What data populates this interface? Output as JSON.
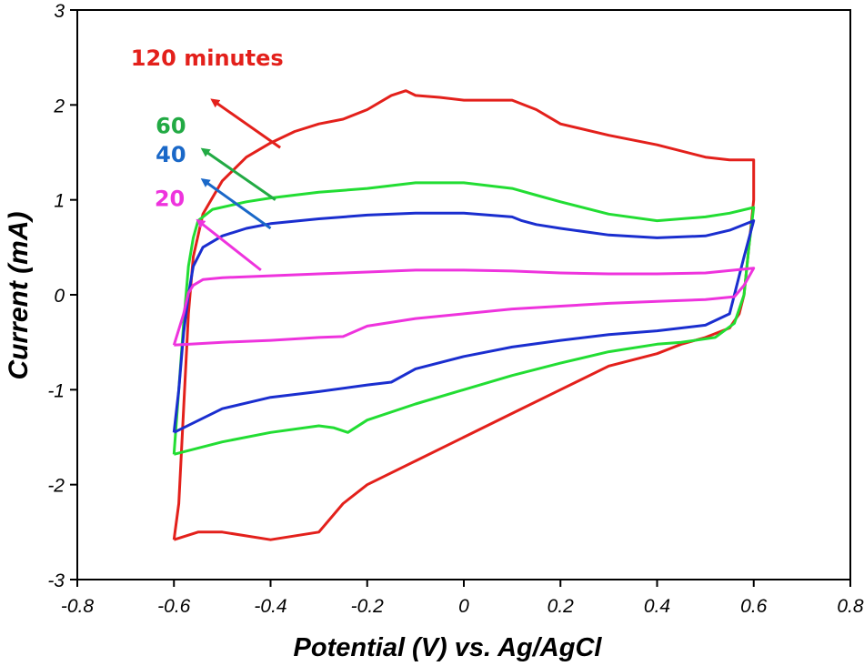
{
  "chart_data": {
    "type": "line",
    "title": "",
    "xlabel": "Potential (V) vs. Ag/AgCl",
    "ylabel": "Current (mA)",
    "xlim": [
      -0.8,
      0.8
    ],
    "ylim": [
      -3,
      3
    ],
    "xticks": [
      "-0.8",
      "-0.6",
      "-0.4",
      "-0.2",
      "0",
      "0.2",
      "0.4",
      "0.6",
      "0.8"
    ],
    "yticks": [
      "3",
      "2",
      "1",
      "0",
      "-1",
      "-2",
      "-3"
    ],
    "grid": false,
    "legend": "none (curves labeled by arrows)",
    "series": [
      {
        "name": "120 minutes",
        "color": "#e3201b",
        "points": [
          [
            -0.6,
            -2.58
          ],
          [
            -0.59,
            -2.2
          ],
          [
            -0.58,
            -1.2
          ],
          [
            -0.57,
            -0.2
          ],
          [
            -0.56,
            0.4
          ],
          [
            -0.54,
            0.85
          ],
          [
            -0.5,
            1.2
          ],
          [
            -0.45,
            1.45
          ],
          [
            -0.4,
            1.6
          ],
          [
            -0.35,
            1.72
          ],
          [
            -0.3,
            1.8
          ],
          [
            -0.25,
            1.85
          ],
          [
            -0.2,
            1.95
          ],
          [
            -0.15,
            2.1
          ],
          [
            -0.12,
            2.15
          ],
          [
            -0.1,
            2.1
          ],
          [
            -0.05,
            2.08
          ],
          [
            0,
            2.05
          ],
          [
            0.05,
            2.05
          ],
          [
            0.1,
            2.05
          ],
          [
            0.15,
            1.95
          ],
          [
            0.2,
            1.8
          ],
          [
            0.3,
            1.68
          ],
          [
            0.4,
            1.58
          ],
          [
            0.5,
            1.45
          ],
          [
            0.55,
            1.42
          ],
          [
            0.6,
            1.42
          ],
          [
            0.6,
            1.0
          ],
          [
            0.59,
            0.5
          ],
          [
            0.58,
            0.0
          ],
          [
            0.57,
            -0.2
          ],
          [
            0.55,
            -0.35
          ],
          [
            0.5,
            -0.45
          ],
          [
            0.45,
            -0.52
          ],
          [
            0.4,
            -0.62
          ],
          [
            0.3,
            -0.75
          ],
          [
            0.2,
            -1.0
          ],
          [
            0.1,
            -1.25
          ],
          [
            0.0,
            -1.5
          ],
          [
            -0.1,
            -1.75
          ],
          [
            -0.2,
            -2.0
          ],
          [
            -0.25,
            -2.2
          ],
          [
            -0.3,
            -2.5
          ],
          [
            -0.4,
            -2.58
          ],
          [
            -0.5,
            -2.5
          ],
          [
            -0.55,
            -2.5
          ],
          [
            -0.6,
            -2.58
          ]
        ]
      },
      {
        "name": "60",
        "color": "#22dd33",
        "points": [
          [
            -0.6,
            -1.68
          ],
          [
            -0.59,
            -1.0
          ],
          [
            -0.58,
            -0.3
          ],
          [
            -0.57,
            0.3
          ],
          [
            -0.56,
            0.6
          ],
          [
            -0.55,
            0.78
          ],
          [
            -0.52,
            0.9
          ],
          [
            -0.45,
            0.98
          ],
          [
            -0.4,
            1.02
          ],
          [
            -0.3,
            1.08
          ],
          [
            -0.2,
            1.12
          ],
          [
            -0.1,
            1.18
          ],
          [
            0,
            1.18
          ],
          [
            0.1,
            1.12
          ],
          [
            0.15,
            1.05
          ],
          [
            0.2,
            0.98
          ],
          [
            0.3,
            0.85
          ],
          [
            0.4,
            0.78
          ],
          [
            0.5,
            0.82
          ],
          [
            0.55,
            0.86
          ],
          [
            0.6,
            0.92
          ],
          [
            0.59,
            0.5
          ],
          [
            0.58,
            0.0
          ],
          [
            0.56,
            -0.3
          ],
          [
            0.52,
            -0.45
          ],
          [
            0.45,
            -0.5
          ],
          [
            0.4,
            -0.52
          ],
          [
            0.3,
            -0.6
          ],
          [
            0.2,
            -0.72
          ],
          [
            0.1,
            -0.85
          ],
          [
            0.0,
            -1.0
          ],
          [
            -0.1,
            -1.15
          ],
          [
            -0.2,
            -1.32
          ],
          [
            -0.24,
            -1.45
          ],
          [
            -0.27,
            -1.4
          ],
          [
            -0.3,
            -1.38
          ],
          [
            -0.4,
            -1.45
          ],
          [
            -0.5,
            -1.55
          ],
          [
            -0.6,
            -1.68
          ]
        ]
      },
      {
        "name": "40",
        "color": "#1a2ecf",
        "points": [
          [
            -0.6,
            -1.45
          ],
          [
            -0.59,
            -1.0
          ],
          [
            -0.58,
            -0.4
          ],
          [
            -0.57,
            0.0
          ],
          [
            -0.56,
            0.3
          ],
          [
            -0.54,
            0.5
          ],
          [
            -0.5,
            0.62
          ],
          [
            -0.45,
            0.7
          ],
          [
            -0.4,
            0.75
          ],
          [
            -0.3,
            0.8
          ],
          [
            -0.2,
            0.84
          ],
          [
            -0.1,
            0.86
          ],
          [
            0,
            0.86
          ],
          [
            0.1,
            0.82
          ],
          [
            0.12,
            0.78
          ],
          [
            0.15,
            0.74
          ],
          [
            0.2,
            0.7
          ],
          [
            0.3,
            0.63
          ],
          [
            0.4,
            0.6
          ],
          [
            0.5,
            0.62
          ],
          [
            0.55,
            0.68
          ],
          [
            0.6,
            0.78
          ],
          [
            0.58,
            0.4
          ],
          [
            0.56,
            0.0
          ],
          [
            0.55,
            -0.2
          ],
          [
            0.5,
            -0.32
          ],
          [
            0.4,
            -0.38
          ],
          [
            0.3,
            -0.42
          ],
          [
            0.2,
            -0.48
          ],
          [
            0.1,
            -0.55
          ],
          [
            0.0,
            -0.65
          ],
          [
            -0.1,
            -0.78
          ],
          [
            -0.15,
            -0.92
          ],
          [
            -0.2,
            -0.95
          ],
          [
            -0.3,
            -1.02
          ],
          [
            -0.4,
            -1.08
          ],
          [
            -0.5,
            -1.2
          ],
          [
            -0.6,
            -1.45
          ]
        ]
      },
      {
        "name": "20",
        "color": "#ee33dd",
        "points": [
          [
            -0.6,
            -0.53
          ],
          [
            -0.58,
            -0.2
          ],
          [
            -0.57,
            0.02
          ],
          [
            -0.56,
            0.1
          ],
          [
            -0.54,
            0.16
          ],
          [
            -0.5,
            0.18
          ],
          [
            -0.4,
            0.2
          ],
          [
            -0.3,
            0.22
          ],
          [
            -0.2,
            0.24
          ],
          [
            -0.1,
            0.26
          ],
          [
            0,
            0.26
          ],
          [
            0.1,
            0.25
          ],
          [
            0.2,
            0.23
          ],
          [
            0.3,
            0.22
          ],
          [
            0.4,
            0.22
          ],
          [
            0.5,
            0.23
          ],
          [
            0.6,
            0.28
          ],
          [
            0.58,
            0.1
          ],
          [
            0.56,
            -0.02
          ],
          [
            0.5,
            -0.05
          ],
          [
            0.4,
            -0.07
          ],
          [
            0.3,
            -0.09
          ],
          [
            0.2,
            -0.12
          ],
          [
            0.1,
            -0.15
          ],
          [
            0.0,
            -0.2
          ],
          [
            -0.1,
            -0.25
          ],
          [
            -0.2,
            -0.33
          ],
          [
            -0.25,
            -0.44
          ],
          [
            -0.3,
            -0.45
          ],
          [
            -0.4,
            -0.48
          ],
          [
            -0.5,
            -0.5
          ],
          [
            -0.6,
            -0.53
          ]
        ]
      }
    ],
    "annotations": [
      {
        "text": "120 minutes",
        "color": "#e3201b",
        "arrow_from": [
          -0.38,
          1.55
        ],
        "arrow_to": [
          -0.52,
          2.05
        ]
      },
      {
        "text": "60",
        "color": "#22aa44",
        "arrow_from": [
          -0.39,
          1.0
        ],
        "arrow_to": [
          -0.54,
          1.53
        ]
      },
      {
        "text": "40",
        "color": "#1a68c8",
        "arrow_from": [
          -0.4,
          0.7
        ],
        "arrow_to": [
          -0.54,
          1.21
        ]
      },
      {
        "text": "20",
        "color": "#ee33dd",
        "arrow_from": [
          -0.42,
          0.26
        ],
        "arrow_to": [
          -0.55,
          0.78
        ]
      }
    ]
  }
}
